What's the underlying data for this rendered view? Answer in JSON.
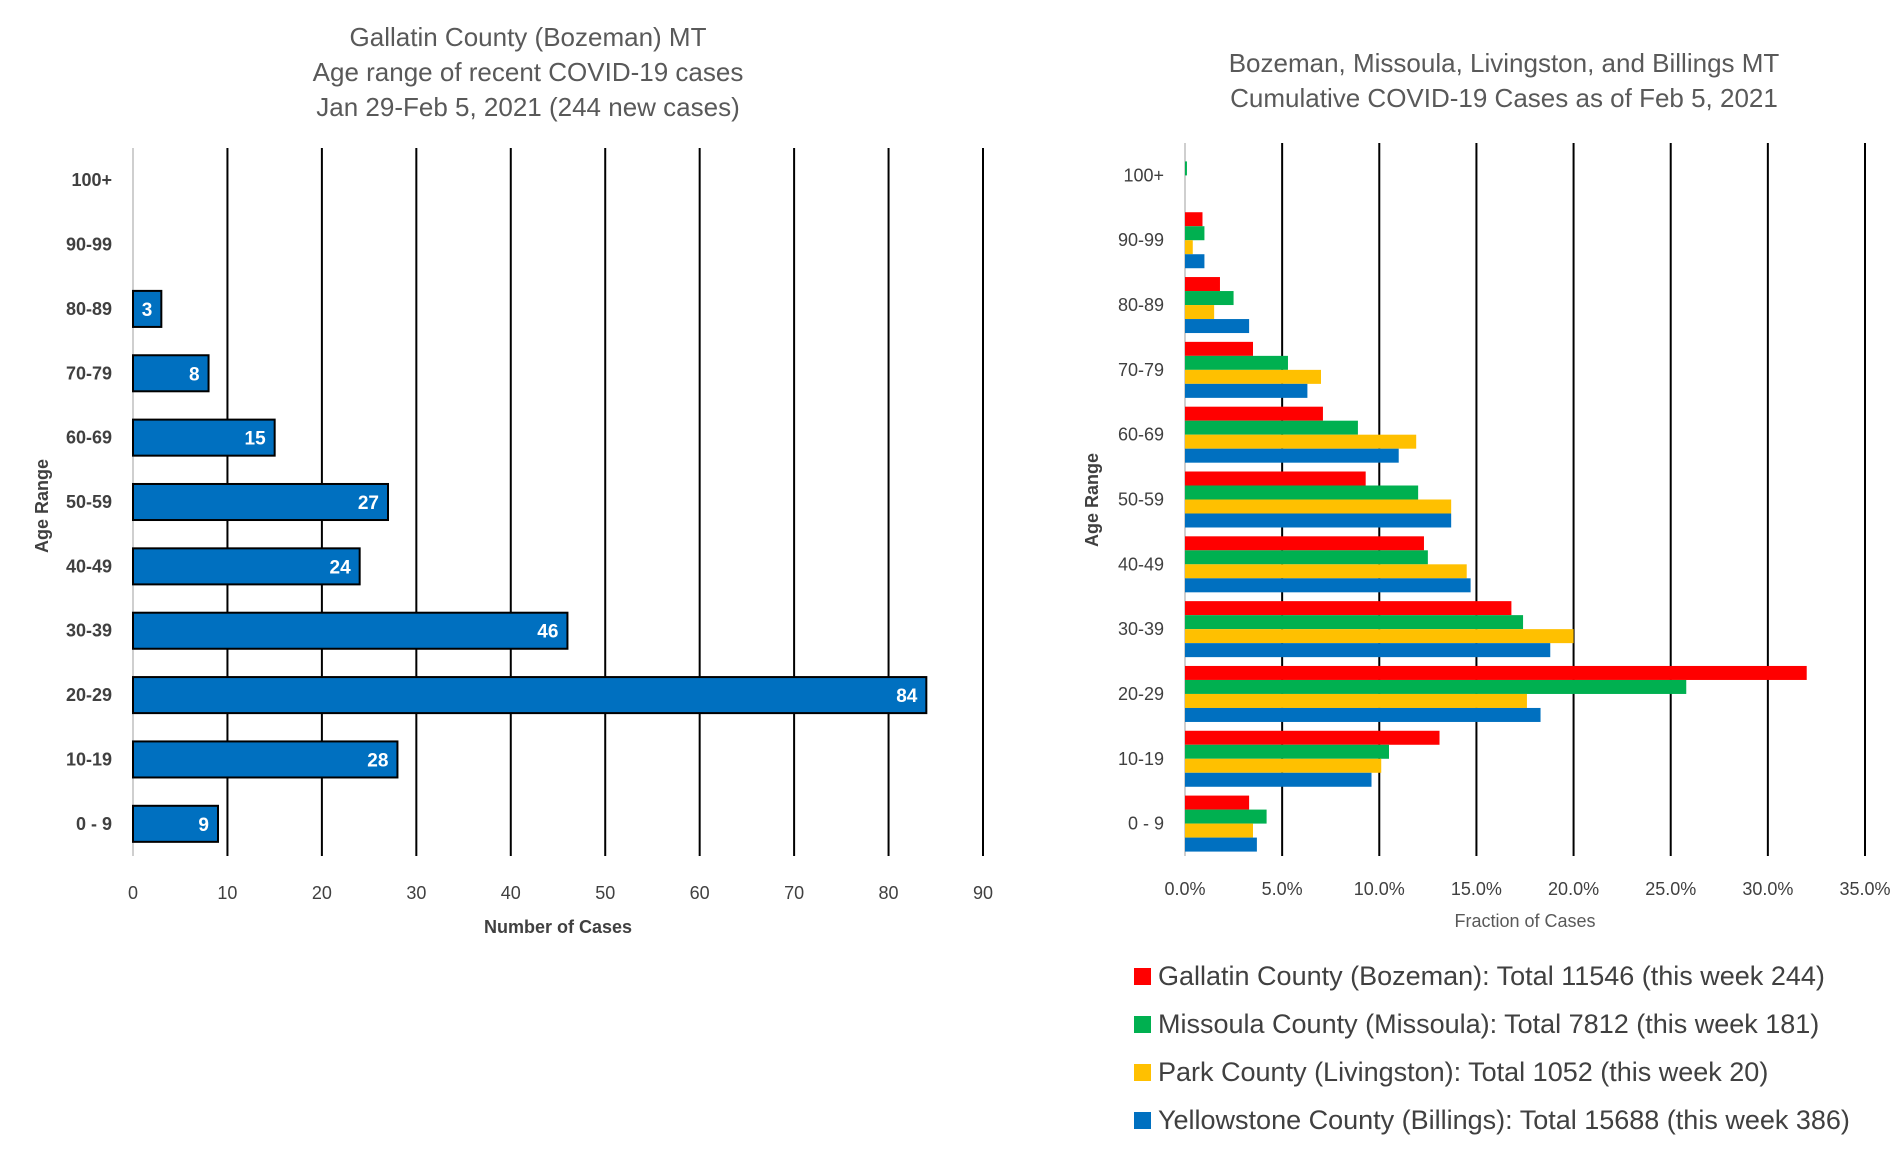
{
  "chart_data": [
    {
      "type": "bar",
      "orientation": "horizontal",
      "title": [
        "Gallatin County (Bozeman) MT",
        "Age range of recent COVID-19 cases",
        "Jan 29-Feb 5, 2021 (244 new cases)"
      ],
      "xlabel": "Number of Cases",
      "ylabel": "Age Range",
      "categories": [
        "0 - 9",
        "10-19",
        "20-29",
        "30-39",
        "40-49",
        "50-59",
        "60-69",
        "70-79",
        "80-89",
        "90-99",
        "100+"
      ],
      "values": [
        9,
        28,
        84,
        46,
        24,
        27,
        15,
        8,
        3,
        0,
        0
      ],
      "data_labels": [
        "9",
        "28",
        "84",
        "46",
        "24",
        "27",
        "15",
        "8",
        "3",
        "",
        ""
      ],
      "xlim": [
        0,
        90
      ],
      "xticks": [
        0,
        10,
        20,
        30,
        40,
        50,
        60,
        70,
        80,
        90
      ],
      "xtick_labels": [
        "0",
        "10",
        "20",
        "30",
        "40",
        "50",
        "60",
        "70",
        "80",
        "90"
      ],
      "grid": "vertical",
      "bar_color": "#0070C0",
      "legend": "none"
    },
    {
      "type": "bar",
      "orientation": "horizontal",
      "title": [
        "Bozeman, Missoula, Livingston, and Billings MT",
        "Cumulative COVID-19 Cases as of Feb 5, 2021"
      ],
      "xlabel": "Fraction of Cases",
      "ylabel": "Age Range",
      "categories": [
        "0 - 9",
        "10-19",
        "20-29",
        "30-39",
        "40-49",
        "50-59",
        "60-69",
        "70-79",
        "80-89",
        "90-99",
        "100+"
      ],
      "xlim": [
        0,
        0.35
      ],
      "xticks": [
        0,
        0.05,
        0.1,
        0.15,
        0.2,
        0.25,
        0.3,
        0.35
      ],
      "xtick_labels": [
        "0.0%",
        "5.0%",
        "10.0%",
        "15.0%",
        "20.0%",
        "25.0%",
        "30.0%",
        "35.0%"
      ],
      "grid": "vertical",
      "legend": "bottom",
      "series": [
        {
          "name": "Gallatin County (Bozeman): Total 11546 (this week 244)",
          "color": "#FF0000",
          "values": [
            0.033,
            0.131,
            0.32,
            0.168,
            0.123,
            0.093,
            0.071,
            0.035,
            0.018,
            0.009,
            0.0
          ]
        },
        {
          "name": "Missoula County (Missoula): Total 7812 (this week 181)",
          "color": "#00B050",
          "values": [
            0.042,
            0.105,
            0.258,
            0.174,
            0.125,
            0.12,
            0.089,
            0.053,
            0.025,
            0.01,
            0.001
          ]
        },
        {
          "name": "Park County (Livingston): Total 1052 (this week 20)",
          "color": "#FFC000",
          "values": [
            0.035,
            0.101,
            0.176,
            0.2,
            0.145,
            0.137,
            0.119,
            0.07,
            0.015,
            0.004,
            0.0
          ]
        },
        {
          "name": "Yellowstone County (Billings): Total 15688 (this week 386)",
          "color": "#0070C0",
          "values": [
            0.037,
            0.096,
            0.183,
            0.188,
            0.147,
            0.137,
            0.11,
            0.063,
            0.033,
            0.01,
            0.0
          ]
        }
      ]
    }
  ]
}
